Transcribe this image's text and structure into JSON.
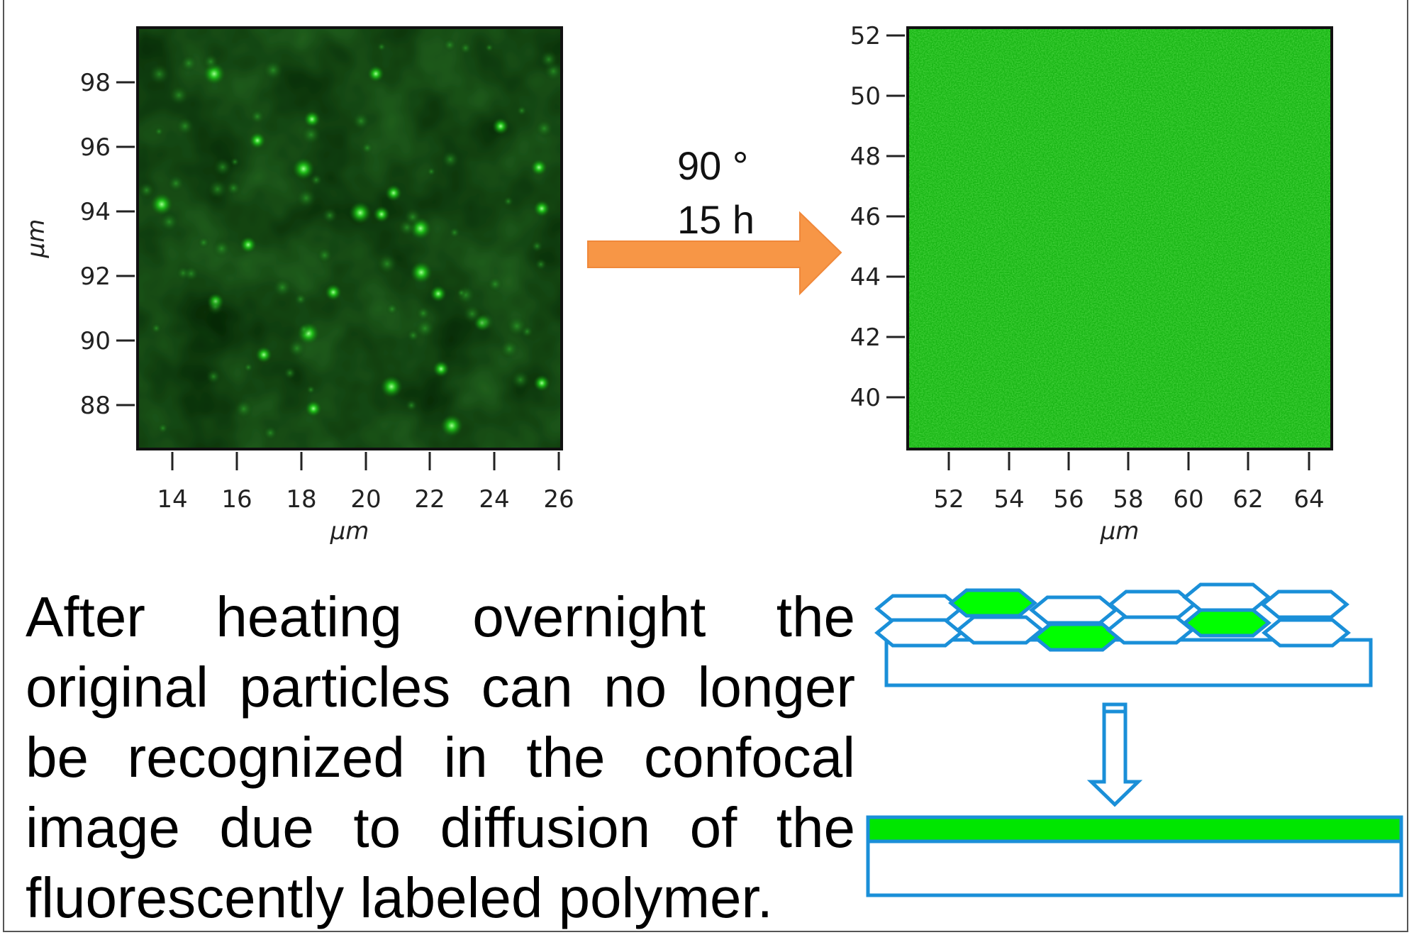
{
  "left_panel": {
    "xlabel": "µm",
    "ylabel": "µm",
    "x_ticks": [
      "14",
      "16",
      "18",
      "20",
      "22",
      "24",
      "26"
    ],
    "y_ticks": [
      "98",
      "96",
      "94",
      "92",
      "90",
      "88"
    ]
  },
  "right_panel": {
    "xlabel": "µm",
    "x_ticks": [
      "52",
      "54",
      "56",
      "58",
      "60",
      "62",
      "64"
    ],
    "y_ticks": [
      "52",
      "50",
      "48",
      "46",
      "44",
      "42",
      "40"
    ]
  },
  "arrow": {
    "line1": "90 °",
    "line2": "15 h",
    "color": "#f79646"
  },
  "caption": "After heating overnight the original particles can no longer be recognized in the confocal image due to diffusion of the fluorescently labeled polymer.",
  "colors": {
    "particle_green": "#00ff00",
    "outline_blue": "#1a8fd8",
    "film_green": "#00e600"
  }
}
